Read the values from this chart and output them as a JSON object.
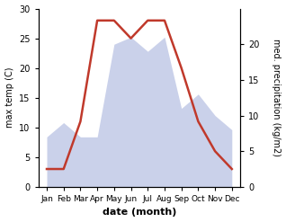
{
  "months": [
    "Jan",
    "Feb",
    "Mar",
    "Apr",
    "May",
    "Jun",
    "Jul",
    "Aug",
    "Sep",
    "Oct",
    "Nov",
    "Dec"
  ],
  "temperature": [
    3,
    3,
    11,
    28,
    28,
    25,
    28,
    28,
    20,
    11,
    6,
    3
  ],
  "precipitation": [
    7,
    9,
    7,
    7,
    20,
    21,
    19,
    21,
    11,
    13,
    10,
    8
  ],
  "temp_color": "#c0392b",
  "precip_fill_color": "#c5cce8",
  "precip_fill_alpha": 0.9,
  "temp_ylim": [
    0,
    30
  ],
  "precip_ylim": [
    0,
    25
  ],
  "left_yticks": [
    0,
    5,
    10,
    15,
    20,
    25,
    30
  ],
  "left_yticklabels": [
    "0",
    "5",
    "10",
    "15",
    "20",
    "25",
    "30"
  ],
  "right_yticks": [
    0,
    5,
    10,
    15,
    20
  ],
  "right_yticklabels": [
    "0",
    "5",
    "10",
    "15",
    "20"
  ],
  "xlabel": "date (month)",
  "ylabel_left": "max temp (C)",
  "ylabel_right": "med. precipitation (kg/m2)",
  "background_color": "#ffffff"
}
